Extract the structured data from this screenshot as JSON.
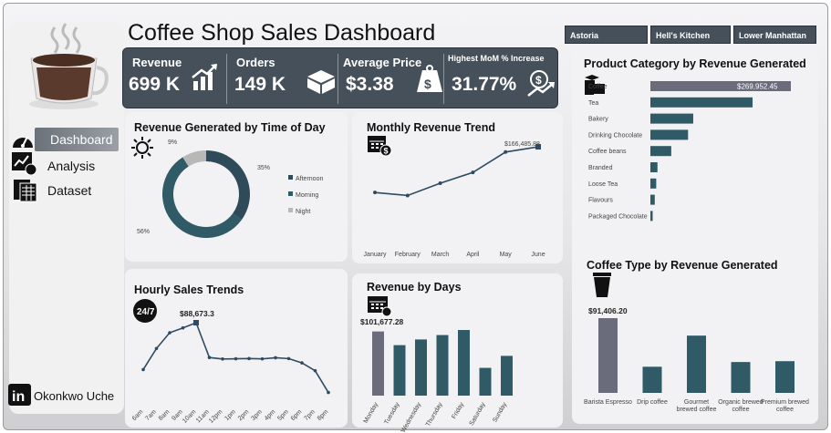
{
  "title": "Coffee Shop Sales Dashboard",
  "filters": [
    "Astoria",
    "Hell's Kitchen",
    "Lower Manhattan"
  ],
  "kpis": {
    "revenue": {
      "label": "Revenue",
      "value": "699 K"
    },
    "orders": {
      "label": "Orders",
      "value": "149 K"
    },
    "avg_price": {
      "label": "Average Price",
      "value": "$3.38"
    },
    "mom": {
      "label": "Highest MoM % Increase",
      "value": "31.77%"
    }
  },
  "nav": [
    "Dashboard",
    "Analysis",
    "Dataset"
  ],
  "author": "Okonkwo Uche",
  "colors": {
    "dark": "#2f4b5a",
    "teal": "#2f5a66",
    "grey": "#b8b8b8",
    "kpi_bg": "#46505a",
    "highlight": "#6a6c7c"
  },
  "chart_data": [
    {
      "type": "pie",
      "title": "Revenue Generated by Time of Day",
      "categories": [
        "Afternoon",
        "Morning",
        "Night"
      ],
      "values": [
        35,
        56,
        9
      ],
      "labels": [
        "35%",
        "56%",
        "9%"
      ]
    },
    {
      "type": "line",
      "title": "Monthly Revenue Trend",
      "categories": [
        "January",
        "February",
        "March",
        "April",
        "May",
        "June"
      ],
      "values": [
        81678,
        76145,
        98835,
        118941,
        156728,
        166486
      ],
      "annotation": "$166,485.88"
    },
    {
      "type": "bar",
      "title": "Product Category by Revenue Generated",
      "orientation": "horizontal",
      "categories": [
        "Coffee",
        "Tea",
        "Bakery",
        "Drinking Chocolate",
        "Coffee beans",
        "Branded",
        "Loose Tea",
        "Flavours",
        "Packaged Chocolate"
      ],
      "values": [
        269952.45,
        196405,
        82316,
        72416,
        40085,
        13607,
        11213,
        8409,
        4408
      ],
      "annotation": "$269,952.45"
    },
    {
      "type": "line",
      "title": "Hourly Sales Trends",
      "categories": [
        "6am",
        "7am",
        "8am",
        "9am",
        "10am",
        "11am",
        "12pm",
        "1pm",
        "2pm",
        "3pm",
        "4pm",
        "5pm",
        "6pm",
        "7pm",
        "8pm"
      ],
      "values": [
        31639,
        57301,
        76466,
        82315,
        88673.3,
        46319,
        44563,
        44789,
        45075,
        44702,
        46035,
        45016,
        39830,
        30228,
        3786
      ],
      "annotation": "$88,673.3"
    },
    {
      "type": "bar",
      "title": "Revenue by Days",
      "categories": [
        "Monday",
        "Tuesday",
        "Wednesday",
        "Thursday",
        "Friday",
        "Saturday",
        "Sunday"
      ],
      "values": [
        101677.28,
        80000,
        89000,
        96000,
        104000,
        44000,
        63000
      ],
      "annotation": "$101,677.28"
    },
    {
      "type": "bar",
      "title": "Coffee Type by Revenue Generated",
      "categories": [
        "Barista Espresso",
        "Drip coffee",
        "Gourmet brewed coffee",
        "Organic brewed coffee",
        "Premium brewed coffee"
      ],
      "values": [
        91406.2,
        31985,
        70034,
        37747,
        38781
      ],
      "annotation": "$91,406.20"
    }
  ]
}
